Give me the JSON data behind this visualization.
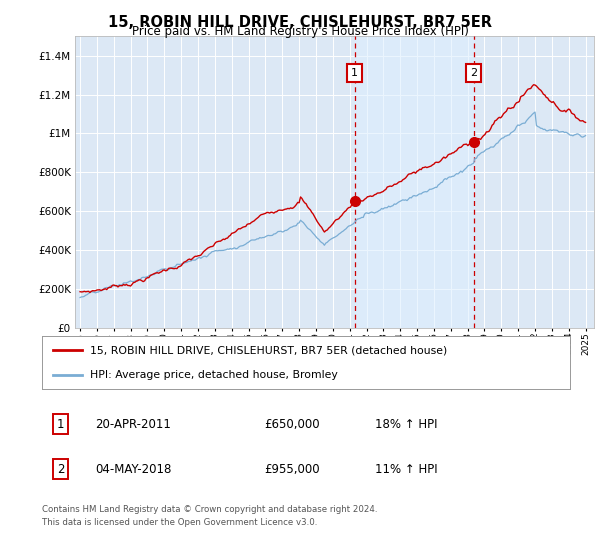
{
  "title": "15, ROBIN HILL DRIVE, CHISLEHURST, BR7 5ER",
  "subtitle": "Price paid vs. HM Land Registry's House Price Index (HPI)",
  "legend_label_red": "15, ROBIN HILL DRIVE, CHISLEHURST, BR7 5ER (detached house)",
  "legend_label_blue": "HPI: Average price, detached house, Bromley",
  "annotation1_date": "20-APR-2011",
  "annotation1_price": "£650,000",
  "annotation1_hpi": "18% ↑ HPI",
  "annotation2_date": "04-MAY-2018",
  "annotation2_price": "£955,000",
  "annotation2_hpi": "11% ↑ HPI",
  "footer": "Contains HM Land Registry data © Crown copyright and database right 2024.\nThis data is licensed under the Open Government Licence v3.0.",
  "background_color": "#ffffff",
  "plot_bg_color": "#dce8f5",
  "grid_color": "#ffffff",
  "red_color": "#cc0000",
  "blue_color": "#7aadd4",
  "shade_color": "#ddeeff",
  "vline_color": "#cc0000",
  "box_color": "#cc0000",
  "ylim": [
    0,
    1500000
  ],
  "yticks": [
    0,
    200000,
    400000,
    600000,
    800000,
    1000000,
    1200000,
    1400000
  ],
  "sale1_x": 2011.3,
  "sale1_y": 650000,
  "sale2_x": 2018.35,
  "sale2_y": 955000,
  "shade_x1": 2011.3,
  "shade_x2": 2018.35,
  "xmin": 1995.0,
  "xmax": 2025.2
}
